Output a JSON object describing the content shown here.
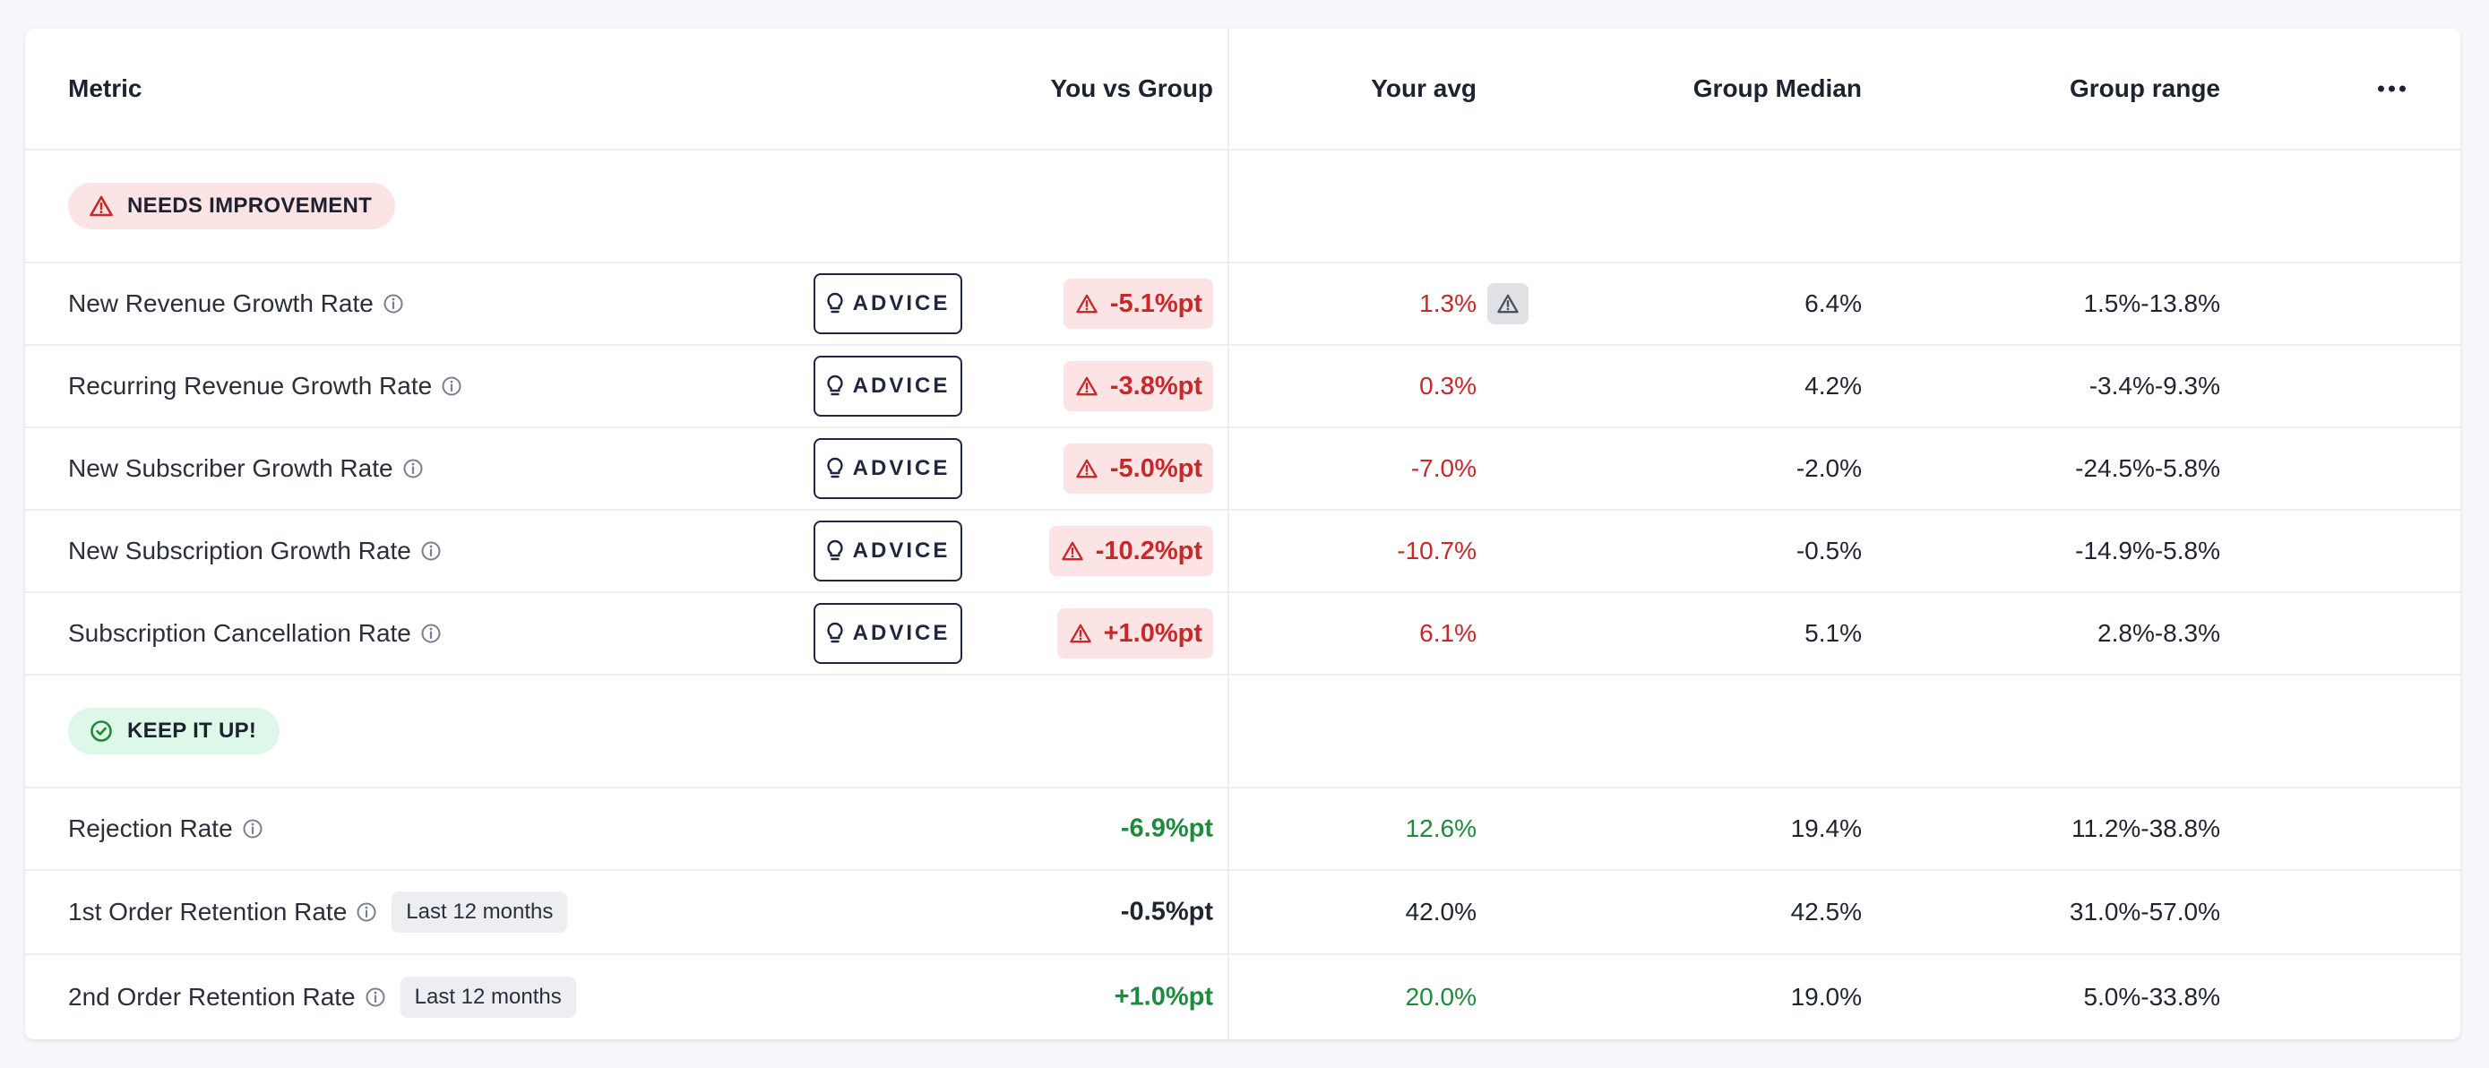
{
  "header": {
    "metric": "Metric",
    "you_vs_group": "You vs Group",
    "your_avg": "Your avg",
    "group_median": "Group Median",
    "group_range": "Group range"
  },
  "sections": {
    "needs_improvement": {
      "label": "NEEDS IMPROVEMENT",
      "rows": [
        {
          "metric": "New Revenue Growth Rate",
          "advice": "ADVICE",
          "delta": "-5.1%pt",
          "avg": "1.3%",
          "median": "6.4%",
          "range": "1.5%-13.8%"
        },
        {
          "metric": "Recurring Revenue Growth Rate",
          "advice": "ADVICE",
          "delta": "-3.8%pt",
          "avg": "0.3%",
          "median": "4.2%",
          "range": "-3.4%-9.3%"
        },
        {
          "metric": "New Subscriber Growth Rate",
          "advice": "ADVICE",
          "delta": "-5.0%pt",
          "avg": "-7.0%",
          "median": "-2.0%",
          "range": "-24.5%-5.8%"
        },
        {
          "metric": "New Subscription Growth Rate",
          "advice": "ADVICE",
          "delta": "-10.2%pt",
          "avg": "-10.7%",
          "median": "-0.5%",
          "range": "-14.9%-5.8%"
        },
        {
          "metric": "Subscription Cancellation Rate",
          "advice": "ADVICE",
          "delta": "+1.0%pt",
          "avg": "6.1%",
          "median": "5.1%",
          "range": "2.8%-8.3%"
        }
      ]
    },
    "keep_it_up": {
      "label": "KEEP IT UP!",
      "rows": [
        {
          "metric": "Rejection Rate",
          "delta": "-6.9%pt",
          "avg": "12.6%",
          "median": "19.4%",
          "range": "11.2%-38.8%"
        },
        {
          "metric": "1st Order Retention Rate",
          "badge": "Last 12 months",
          "delta": "-0.5%pt",
          "avg": "42.0%",
          "median": "42.5%",
          "range": "31.0%-57.0%"
        },
        {
          "metric": "2nd Order Retention Rate",
          "badge": "Last 12 months",
          "delta": "+1.0%pt",
          "avg": "20.0%",
          "median": "19.0%",
          "range": "5.0%-33.8%"
        }
      ]
    }
  },
  "colors": {
    "negative": "#c8282a",
    "positive": "#1f8a3b",
    "negative_bg": "#fbe4e3",
    "positive_bg": "#ddf7e8"
  },
  "icons": [
    "warning-triangle-icon",
    "check-circle-icon",
    "info-icon",
    "lightbulb-icon",
    "more-horizontal-icon"
  ]
}
